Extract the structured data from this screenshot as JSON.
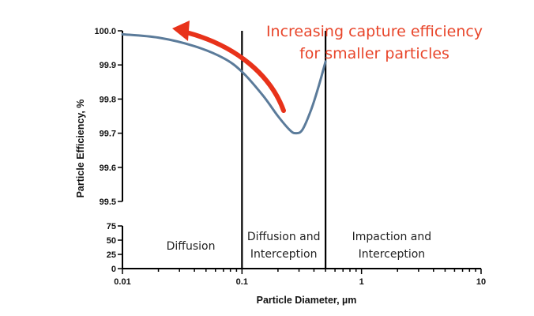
{
  "chart_data": {
    "type": "line",
    "xlabel": "Particle Diameter, µm",
    "ylabel": "Particle Efficiency, %",
    "x_scale": "log",
    "xlim": [
      0.01,
      10
    ],
    "x_ticks": [
      "0.01",
      "0.1",
      "1",
      "10"
    ],
    "upper_ylim": [
      99.5,
      100.0
    ],
    "upper_y_ticks": [
      "100.0",
      "99.9",
      "99.8",
      "99.7",
      "99.6",
      "99.5"
    ],
    "lower_ylim": [
      0,
      75
    ],
    "lower_y_ticks": [
      "75",
      "50",
      "25",
      "0"
    ],
    "series": [
      {
        "color": "#5b7b9a",
        "points": [
          {
            "x": 0.01,
            "y": 99.99
          },
          {
            "x": 0.02,
            "y": 99.98
          },
          {
            "x": 0.04,
            "y": 99.955
          },
          {
            "x": 0.07,
            "y": 99.92
          },
          {
            "x": 0.1,
            "y": 99.88
          },
          {
            "x": 0.15,
            "y": 99.81
          },
          {
            "x": 0.2,
            "y": 99.75
          },
          {
            "x": 0.25,
            "y": 99.71
          },
          {
            "x": 0.28,
            "y": 99.7
          },
          {
            "x": 0.32,
            "y": 99.71
          },
          {
            "x": 0.38,
            "y": 99.77
          },
          {
            "x": 0.44,
            "y": 99.84
          },
          {
            "x": 0.5,
            "y": 99.91
          }
        ]
      }
    ],
    "dividers_x": [
      0.1,
      0.5
    ],
    "regions": [
      "Diffusion",
      "Diffusion and\nInterception",
      "Impaction and\nInterception"
    ],
    "annotation": {
      "text": [
        "Increasing capture efficiency",
        "for smaller particles"
      ],
      "color": "#e8452a"
    },
    "arrow_color": "#e8321a"
  }
}
